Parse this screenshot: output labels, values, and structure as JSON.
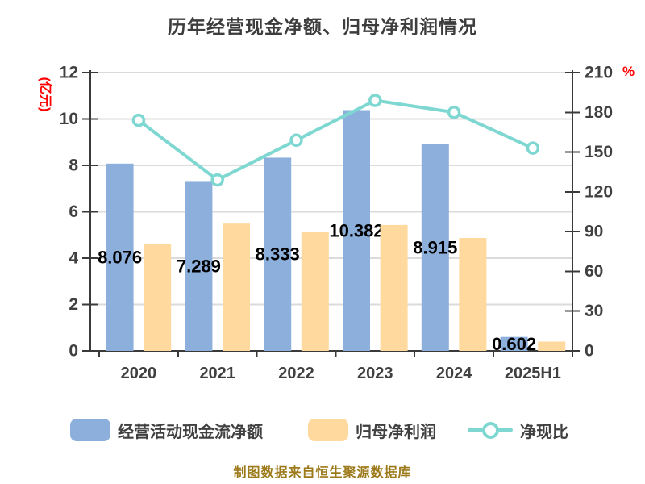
{
  "footer": "制图数据来自恒生聚源数据库",
  "colors": {
    "background": "#ffffff",
    "axis": "#3a3a3a",
    "grid": "#dbdbdb",
    "tick_label": "#404040",
    "data_label": "#000000",
    "axis_name_red": "#ff0000",
    "footer_text": "#9c7a1a",
    "bar_blue": "#8cafdb",
    "bar_yellow": "#ffd99d",
    "line_teal": "#7ed8d1"
  },
  "chart_data": {
    "type": "bar",
    "subtype": "combo-bar-line-dual-axis",
    "title": "历年经营现金净额、归母净利润情况",
    "left_axis_name": "(亿元)",
    "right_axis_name": "%",
    "left_axis": {
      "min": 0,
      "max": 12,
      "step": 2,
      "ticks": [
        0,
        2,
        4,
        6,
        8,
        10,
        12
      ]
    },
    "right_axis": {
      "min": 0,
      "max": 210,
      "step": 30,
      "ticks": [
        0,
        30,
        60,
        90,
        120,
        150,
        180,
        210
      ]
    },
    "categories": [
      "2020",
      "2021",
      "2022",
      "2023",
      "2024",
      "2025H1"
    ],
    "grid": "horizontal",
    "legend_position": "bottom",
    "series": [
      {
        "name": "经营活动现金流净额",
        "type": "bar",
        "y_axis": "left",
        "color": "#8cafdb",
        "values": [
          8.076,
          7.289,
          8.333,
          10.382,
          8.915,
          0.602
        ],
        "data_labels": [
          "8.076",
          "7.289",
          "8.333",
          "10.382",
          "8.915",
          "0.602"
        ]
      },
      {
        "name": "归母净利润",
        "type": "bar",
        "y_axis": "left",
        "color": "#ffd99d",
        "values": [
          4.59,
          5.49,
          5.13,
          5.43,
          4.87,
          0.4
        ]
      },
      {
        "name": "净现比",
        "type": "line",
        "y_axis": "right",
        "unit": "%",
        "color": "#7ed8d1",
        "marker": "circle-white-fill",
        "values": [
          174,
          129,
          159,
          189,
          180,
          153
        ]
      }
    ]
  }
}
